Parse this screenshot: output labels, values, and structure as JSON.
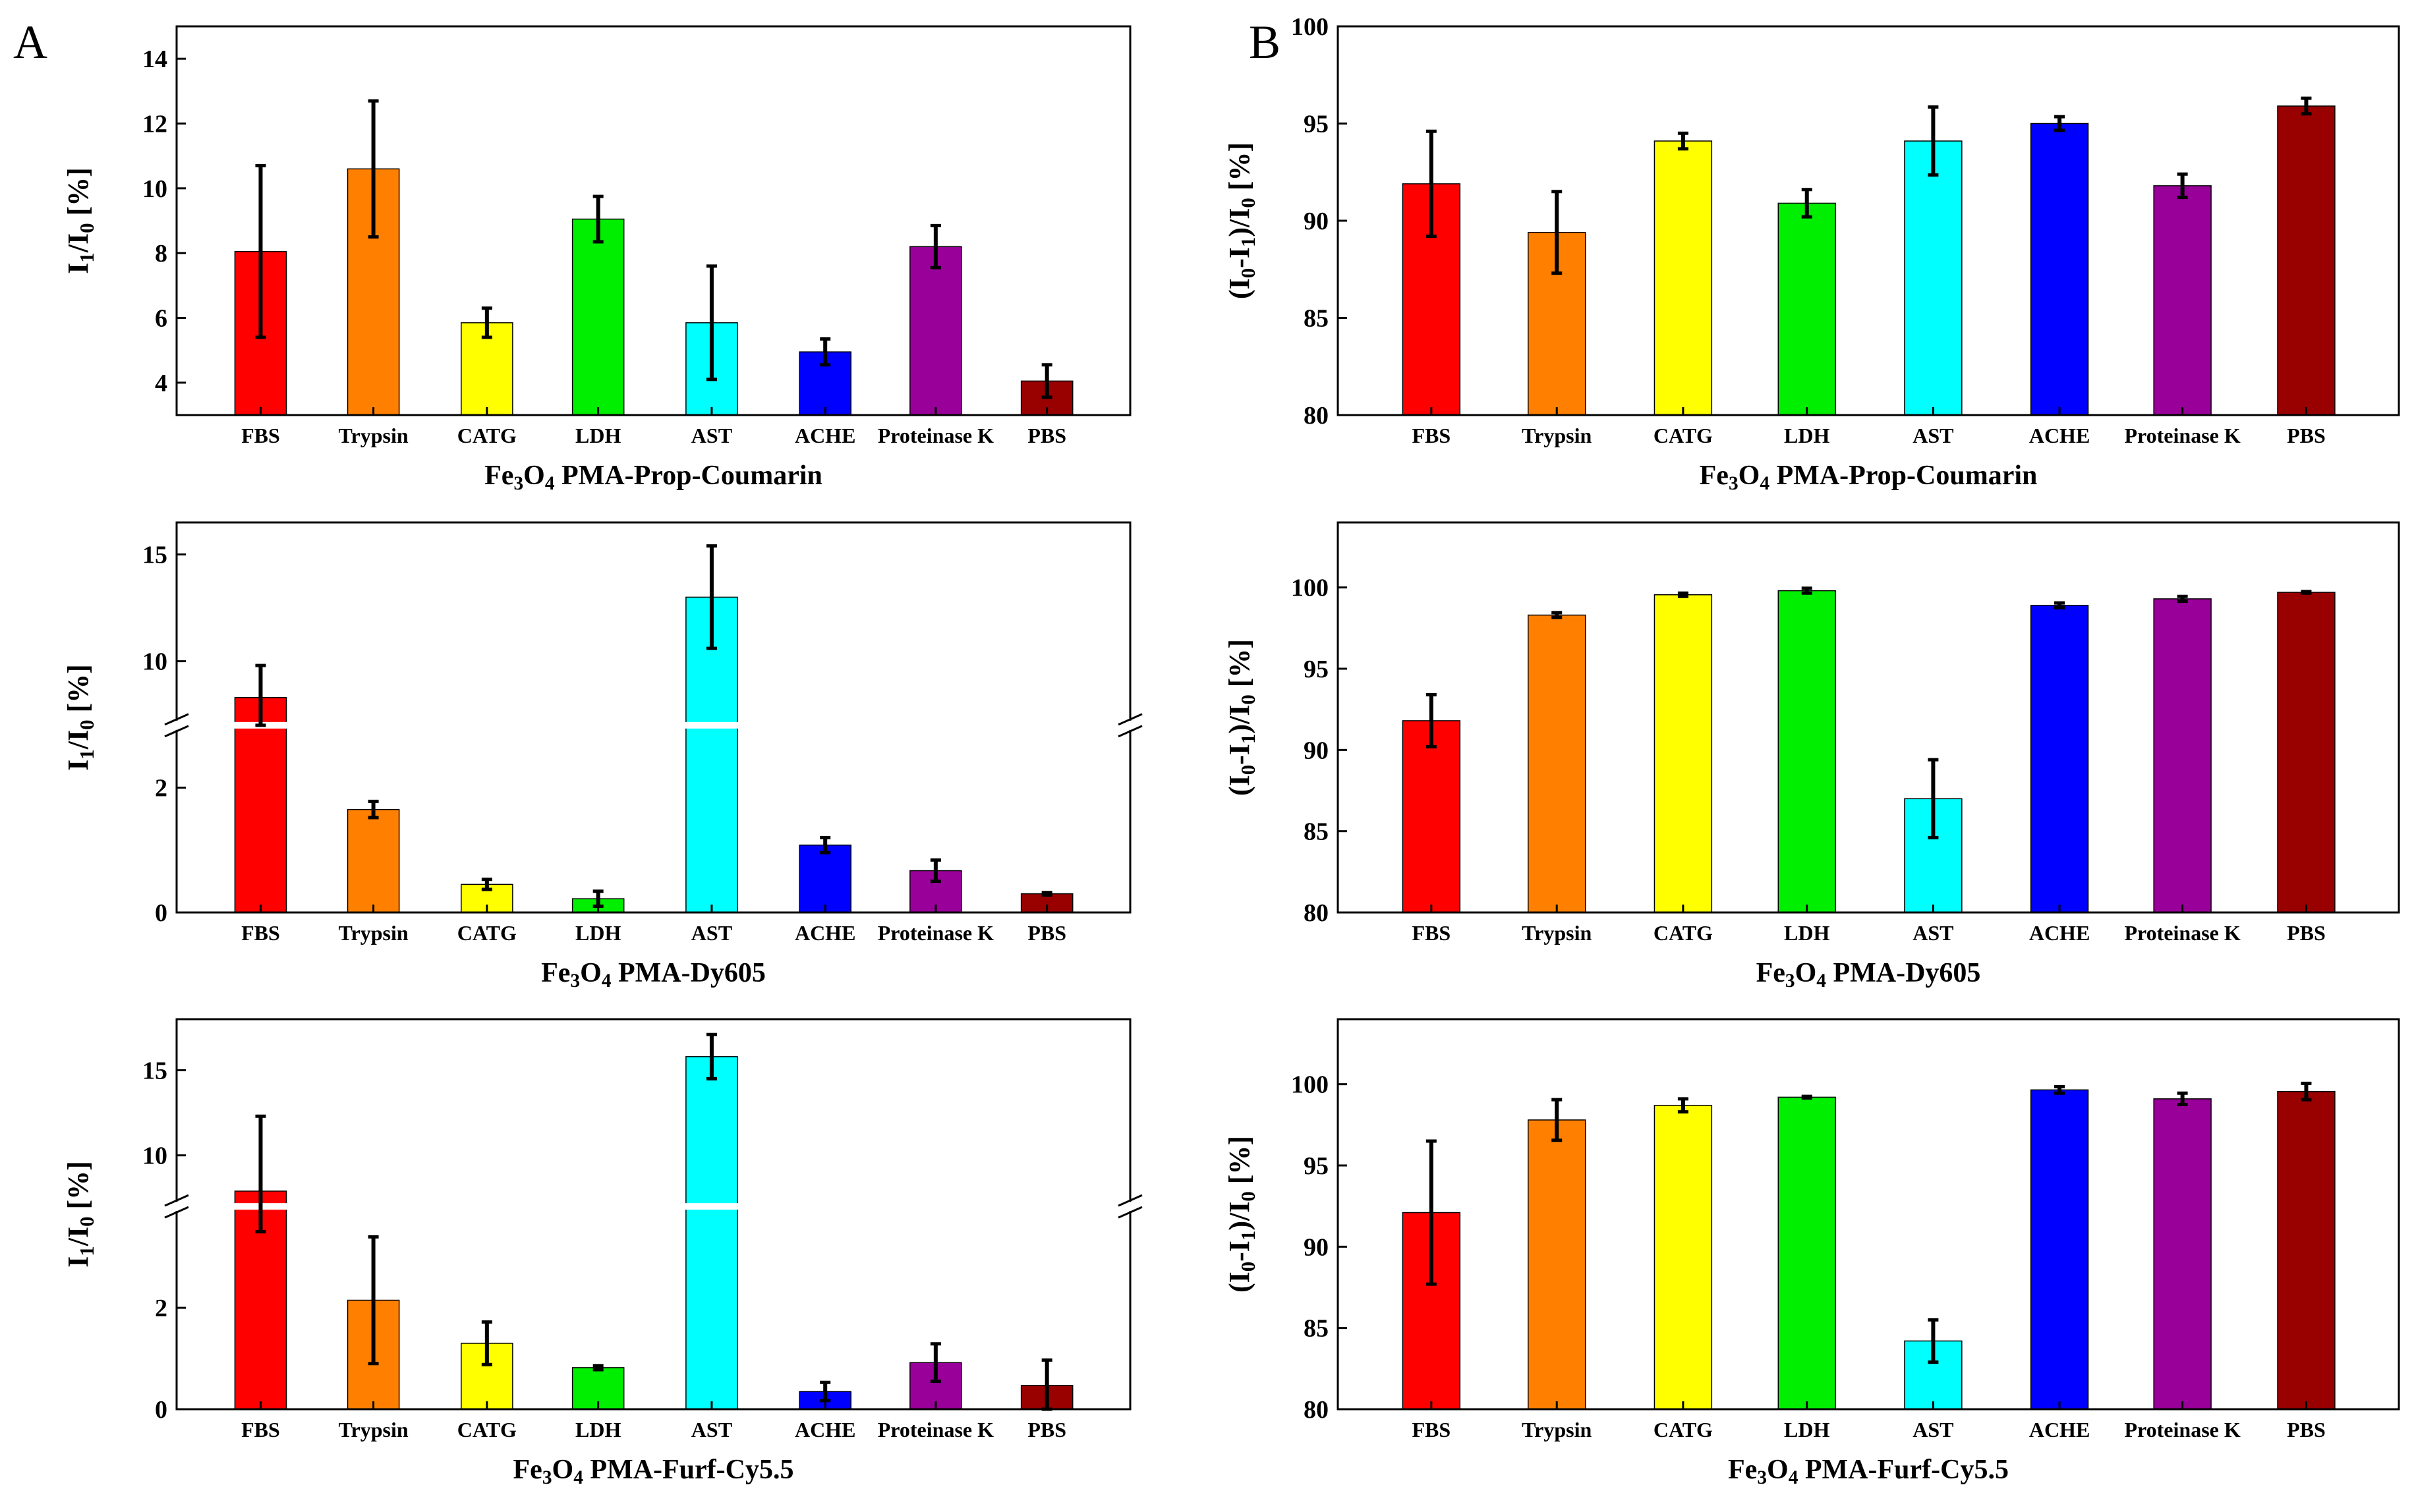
{
  "figure": {
    "panel_labels": [
      "A",
      "B"
    ]
  },
  "chart_data": [
    {
      "id": "A1",
      "type": "bar",
      "title": "",
      "xlabel": "Fe3O4 PMA-Prop-Coumarin",
      "xlabel_rich": [
        "Fe",
        "3",
        "O",
        "4",
        " PMA-Prop-Coumarin"
      ],
      "ylabel": "I1/I0 [%]",
      "ylabel_rich": [
        "I",
        "1",
        "/I",
        "0",
        " [%]"
      ],
      "categories": [
        "FBS",
        "Trypsin",
        "CATG",
        "LDH",
        "AST",
        "ACHE",
        "Proteinase K",
        "PBS"
      ],
      "colors": [
        "#ff0000",
        "#ff8000",
        "#ffff00",
        "#00ee00",
        "#00ffff",
        "#0000ff",
        "#990099",
        "#990000"
      ],
      "values": [
        8.05,
        10.6,
        5.85,
        9.05,
        5.85,
        4.95,
        8.2,
        4.05
      ],
      "errors": [
        2.65,
        2.1,
        0.45,
        0.7,
        1.75,
        0.4,
        0.65,
        0.5
      ],
      "ylim": [
        3,
        15
      ],
      "yticks": [
        4,
        6,
        8,
        10,
        12,
        14
      ],
      "grid": false
    },
    {
      "id": "B1",
      "type": "bar",
      "title": "",
      "xlabel": "Fe3O4 PMA-Prop-Coumarin",
      "xlabel_rich": [
        "Fe",
        "3",
        "O",
        "4",
        " PMA-Prop-Coumarin"
      ],
      "ylabel": "(I0-I1)/I0 [%]",
      "ylabel_rich": [
        "(I",
        "0",
        "-I",
        "1",
        ")/I",
        "0",
        " [%]"
      ],
      "categories": [
        "FBS",
        "Trypsin",
        "CATG",
        "LDH",
        "AST",
        "ACHE",
        "Proteinase K",
        "PBS"
      ],
      "colors": [
        "#ff0000",
        "#ff8000",
        "#ffff00",
        "#00ee00",
        "#00ffff",
        "#0000ff",
        "#990099",
        "#990000"
      ],
      "values": [
        91.9,
        89.4,
        94.1,
        90.9,
        94.1,
        95.0,
        91.8,
        95.9
      ],
      "errors": [
        2.7,
        2.1,
        0.4,
        0.7,
        1.75,
        0.35,
        0.6,
        0.4
      ],
      "ylim": [
        80,
        100
      ],
      "yticks": [
        80,
        85,
        90,
        95,
        100
      ],
      "grid": false
    },
    {
      "id": "A2",
      "type": "bar",
      "title": "",
      "xlabel": "Fe3O4 PMA-Dy605",
      "xlabel_rich": [
        "Fe",
        "3",
        "O",
        "4",
        " PMA-Dy605"
      ],
      "ylabel": "I1/I0 [%]",
      "ylabel_rich": [
        "I",
        "1",
        "/I",
        "0",
        " [%]"
      ],
      "categories": [
        "FBS",
        "Trypsin",
        "CATG",
        "LDH",
        "AST",
        "ACHE",
        "Proteinase K",
        "PBS"
      ],
      "colors": [
        "#ff0000",
        "#ff8000",
        "#ffff00",
        "#00ee00",
        "#00ffff",
        "#0000ff",
        "#990099",
        "#990000"
      ],
      "values": [
        8.3,
        1.65,
        0.45,
        0.22,
        13.0,
        1.08,
        0.67,
        0.3
      ],
      "errors": [
        1.5,
        0.13,
        0.08,
        0.12,
        2.4,
        0.12,
        0.17,
        0.02
      ],
      "axis_break": {
        "lower": [
          0,
          3
        ],
        "upper": [
          7,
          16.5
        ]
      },
      "yticks_lower": [
        0,
        2
      ],
      "yticks_upper": [
        10,
        15
      ],
      "grid": false
    },
    {
      "id": "B2",
      "type": "bar",
      "title": "",
      "xlabel": "Fe3O4 PMA-Dy605",
      "xlabel_rich": [
        "Fe",
        "3",
        "O",
        "4",
        " PMA-Dy605"
      ],
      "ylabel": "(I0-I1)/I0 [%]",
      "ylabel_rich": [
        "(I",
        "0",
        "-I",
        "1",
        ")/I",
        "0",
        " [%]"
      ],
      "categories": [
        "FBS",
        "Trypsin",
        "CATG",
        "LDH",
        "AST",
        "ACHE",
        "Proteinase K",
        "PBS"
      ],
      "colors": [
        "#ff0000",
        "#ff8000",
        "#ffff00",
        "#00ee00",
        "#00ffff",
        "#0000ff",
        "#990099",
        "#990000"
      ],
      "values": [
        91.8,
        98.3,
        99.55,
        99.8,
        87.0,
        98.9,
        99.3,
        99.7
      ],
      "errors": [
        1.6,
        0.15,
        0.1,
        0.15,
        2.4,
        0.15,
        0.15,
        0.05
      ],
      "ylim": [
        80,
        104
      ],
      "yticks": [
        80,
        85,
        90,
        95,
        100
      ],
      "grid": false
    },
    {
      "id": "A3",
      "type": "bar",
      "title": "",
      "xlabel": "Fe3O4 PMA-Furf-Cy5.5",
      "xlabel_rich": [
        "Fe",
        "3",
        "O",
        "4",
        " PMA-Furf-Cy5.5"
      ],
      "ylabel": "I1/I0 [%]",
      "ylabel_rich": [
        "I",
        "1",
        "/I",
        "0",
        " [%]"
      ],
      "categories": [
        "FBS",
        "Trypsin",
        "CATG",
        "LDH",
        "AST",
        "ACHE",
        "Proteinase K",
        "PBS"
      ],
      "colors": [
        "#ff0000",
        "#ff8000",
        "#ffff00",
        "#00ee00",
        "#00ffff",
        "#0000ff",
        "#990099",
        "#990000"
      ],
      "values": [
        7.9,
        2.15,
        1.3,
        0.82,
        15.8,
        0.35,
        0.92,
        0.47
      ],
      "errors": [
        4.4,
        1.25,
        0.42,
        0.04,
        1.3,
        0.18,
        0.37,
        0.5
      ],
      "axis_break": {
        "lower": [
          0,
          4
        ],
        "upper": [
          7,
          18
        ]
      },
      "yticks_lower": [
        0,
        2
      ],
      "yticks_upper": [
        10,
        15
      ],
      "grid": false
    },
    {
      "id": "B3",
      "type": "bar",
      "title": "",
      "xlabel": "Fe3O4 PMA-Furf-Cy5.5",
      "xlabel_rich": [
        "Fe",
        "3",
        "O",
        "4",
        " PMA-Furf-Cy5.5"
      ],
      "ylabel": "(I0-I1)/I0 [%]",
      "ylabel_rich": [
        "(I",
        "0",
        "-I",
        "1",
        ")/I",
        "0",
        " [%]"
      ],
      "categories": [
        "FBS",
        "Trypsin",
        "CATG",
        "LDH",
        "AST",
        "ACHE",
        "Proteinase K",
        "PBS"
      ],
      "colors": [
        "#ff0000",
        "#ff8000",
        "#ffff00",
        "#00ee00",
        "#00ffff",
        "#0000ff",
        "#990099",
        "#990000"
      ],
      "values": [
        92.1,
        97.8,
        98.7,
        99.2,
        84.2,
        99.65,
        99.1,
        99.55
      ],
      "errors": [
        4.4,
        1.25,
        0.4,
        0.05,
        1.3,
        0.2,
        0.35,
        0.5
      ],
      "ylim": [
        80,
        104
      ],
      "yticks": [
        80,
        85,
        90,
        95,
        100
      ],
      "grid": false
    }
  ]
}
